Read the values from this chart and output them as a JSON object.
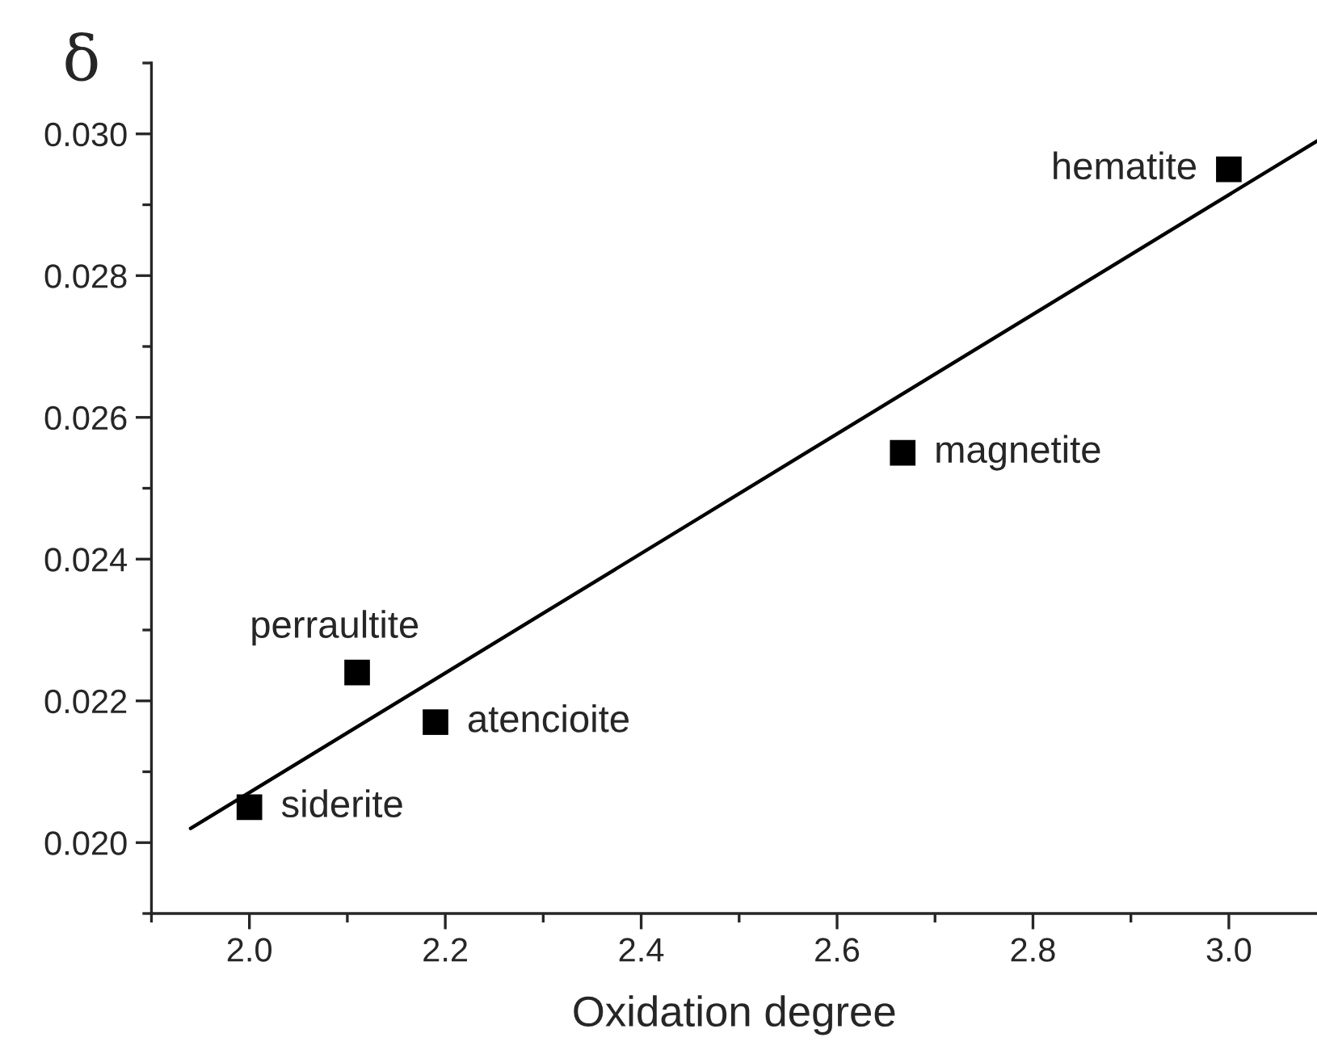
{
  "chart_data": {
    "type": "scatter",
    "xlabel": "Oxidation degree",
    "ylabel": "δ",
    "xlim": [
      1.9,
      3.09
    ],
    "ylim": [
      0.019,
      0.031
    ],
    "xticks": [
      {
        "value": 2.0,
        "label": "2.0"
      },
      {
        "value": 2.2,
        "label": "2.2"
      },
      {
        "value": 2.4,
        "label": "2.4"
      },
      {
        "value": 2.6,
        "label": "2.6"
      },
      {
        "value": 2.8,
        "label": "2.8"
      },
      {
        "value": 3.0,
        "label": "3.0"
      }
    ],
    "yticks": [
      {
        "value": 0.02,
        "label": "0.020"
      },
      {
        "value": 0.022,
        "label": "0.022"
      },
      {
        "value": 0.024,
        "label": "0.024"
      },
      {
        "value": 0.026,
        "label": "0.026"
      },
      {
        "value": 0.028,
        "label": "0.028"
      },
      {
        "value": 0.03,
        "label": "0.030"
      }
    ],
    "grid": false,
    "legend": false,
    "series": [
      {
        "color": "#000000",
        "marker": "square",
        "x": [
          2.0,
          2.11,
          2.19,
          2.667,
          3.0
        ],
        "values": [
          0.0205,
          0.0224,
          0.0217,
          0.0255,
          0.0295
        ]
      },
      {
        "type": "line",
        "color": "#000000",
        "line_style": "solid",
        "marker": "none",
        "x": [
          1.94,
          3.09
        ],
        "values": [
          0.0202,
          0.0299
        ]
      }
    ],
    "annotations": [
      {
        "text": "siderite",
        "x": 2.0,
        "y": 0.0205
      },
      {
        "text": "perraultite",
        "x": 2.11,
        "y": 0.0224
      },
      {
        "text": "atencioite",
        "x": 2.19,
        "y": 0.0217
      },
      {
        "text": "magnetite",
        "x": 2.667,
        "y": 0.0255
      },
      {
        "text": "hematite",
        "x": 3.0,
        "y": 0.0295
      }
    ]
  }
}
